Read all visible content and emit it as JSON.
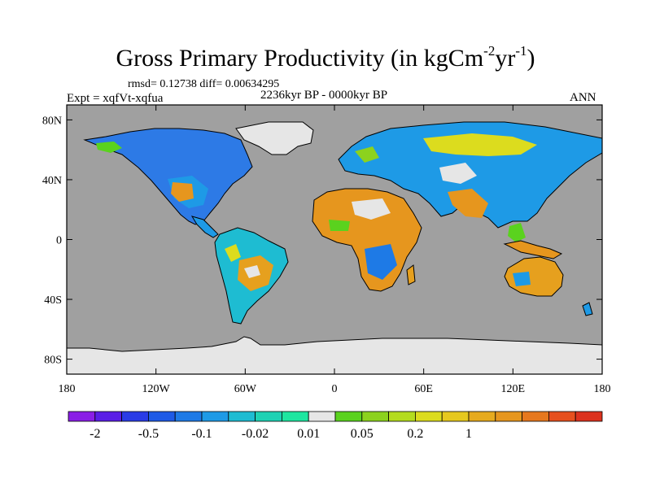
{
  "title_main": "Gross Primary Productivity (in kgCm",
  "title_exp1": "-2",
  "title_mid": "yr",
  "title_exp2": "-1",
  "title_end": ")",
  "stats": "rmsd= 0.12738 diff= 0.00634295",
  "experiment": "Expt = xqfVt-xqfua",
  "period": "2236kyr BP - 0000kyr BP",
  "season": "ANN",
  "lat_ticks": [
    {
      "value": 80,
      "label": "80N"
    },
    {
      "value": 40,
      "label": "40N"
    },
    {
      "value": 0,
      "label": "0"
    },
    {
      "value": -40,
      "label": "40S"
    },
    {
      "value": -80,
      "label": "80S"
    }
  ],
  "lon_ticks": [
    {
      "value": -180,
      "label": "180"
    },
    {
      "value": -120,
      "label": "120W"
    },
    {
      "value": -60,
      "label": "60W"
    },
    {
      "value": 0,
      "label": "0"
    },
    {
      "value": 60,
      "label": "60E"
    },
    {
      "value": 120,
      "label": "120E"
    },
    {
      "value": 180,
      "label": "180"
    }
  ],
  "colorbar": {
    "colors": [
      "#8a1ee6",
      "#5a1ee6",
      "#2a3ce6",
      "#1e5ae6",
      "#1e7ae6",
      "#1e9ae6",
      "#1ebcd2",
      "#1ed2b4",
      "#1ee6a0",
      "#e6e6e6",
      "#5ad21e",
      "#8cd21e",
      "#b4dc1e",
      "#dcdc1e",
      "#e6c81e",
      "#e6aa1e",
      "#e6961e",
      "#e6781e",
      "#e6501e",
      "#dc321e"
    ],
    "labels": [
      {
        "after_box": 1,
        "text": "-2"
      },
      {
        "after_box": 3,
        "text": "-0.5"
      },
      {
        "after_box": 5,
        "text": "-0.1"
      },
      {
        "after_box": 7,
        "text": "-0.02"
      },
      {
        "after_box": 9,
        "text": "0.01"
      },
      {
        "after_box": 11,
        "text": "0.05"
      },
      {
        "after_box": 13,
        "text": "0.2"
      },
      {
        "after_box": 15,
        "text": "1"
      }
    ]
  },
  "colors": {
    "ocean": "#a0a0a0",
    "no_change": "#e6e6e6",
    "coast": "#000000"
  }
}
